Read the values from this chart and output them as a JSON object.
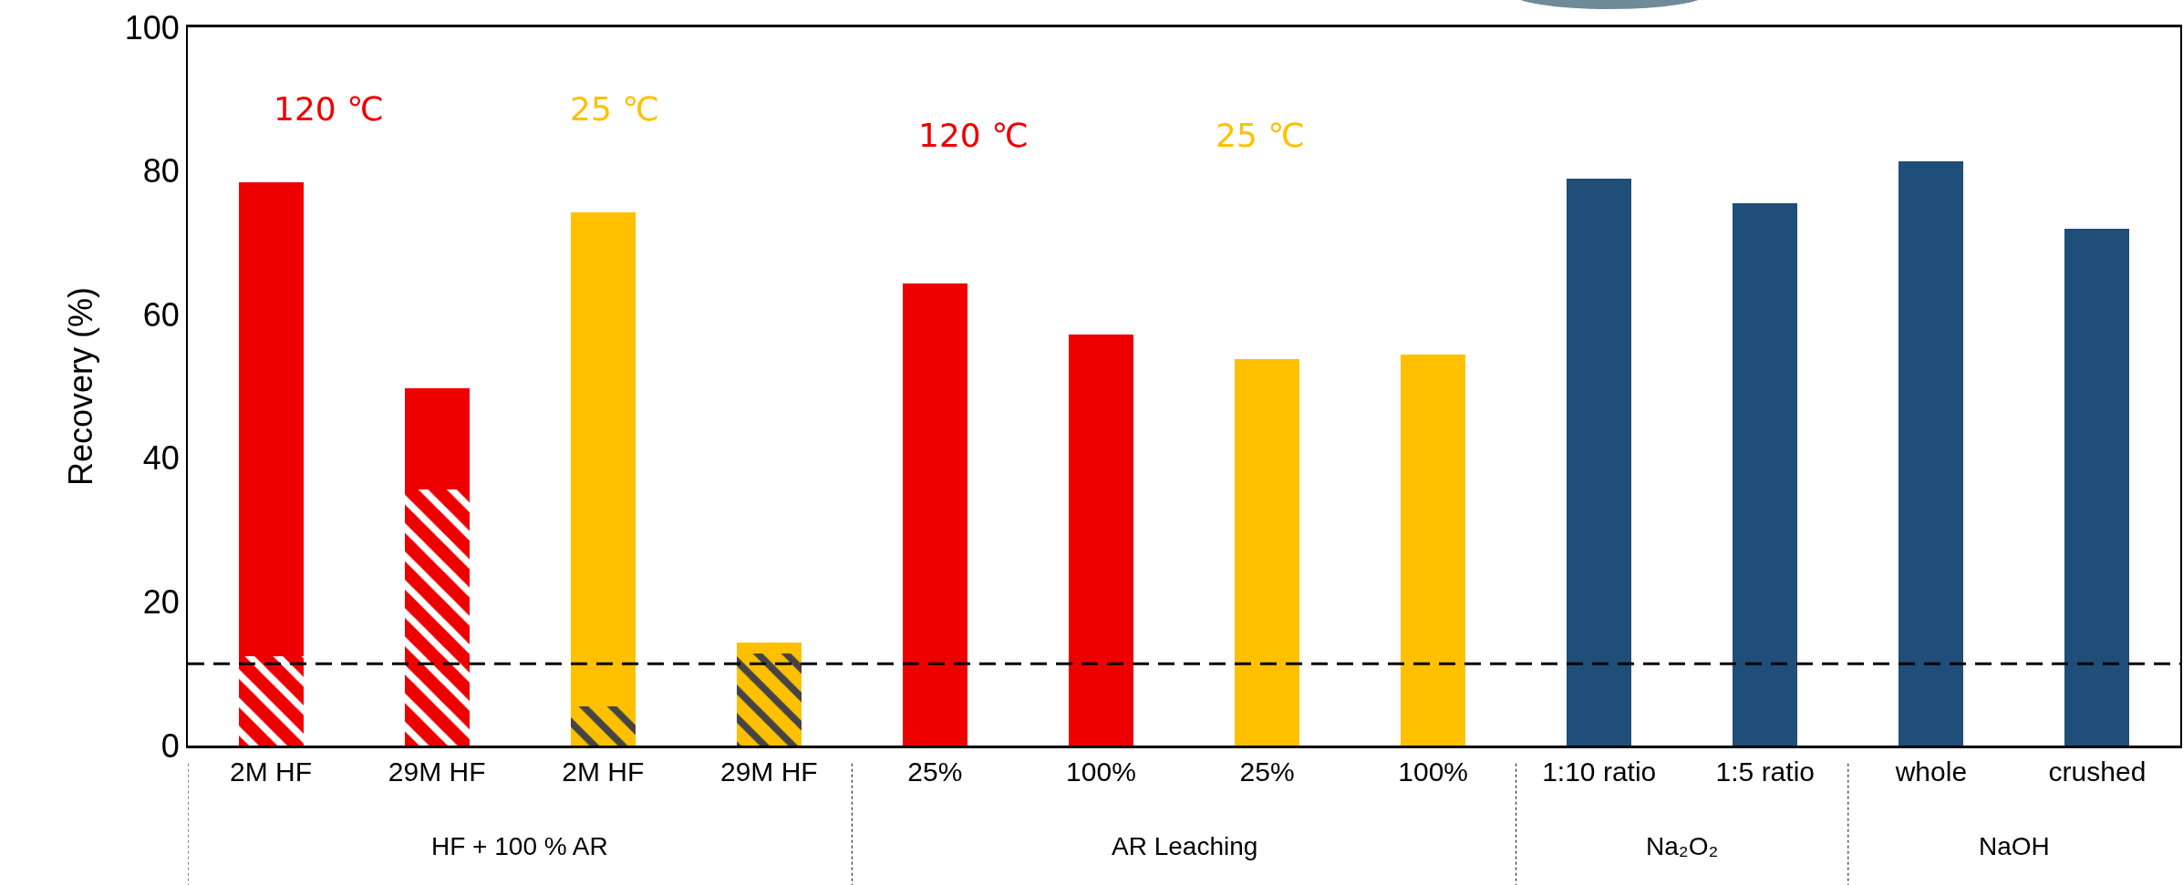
{
  "chart_data": {
    "type": "bar",
    "ylabel": "Recovery (%)",
    "categories": [
      "2M HF",
      "29M HF",
      "2M HF",
      "29M HF",
      "25%",
      "100%",
      "25%",
      "100%",
      "1:10 ratio",
      "1:5 ratio",
      "whole",
      "crushed"
    ],
    "stacked": true,
    "series": [
      {
        "colors": [
          "#ee0000",
          "#ee0000",
          "#ffc000",
          "#ffc000",
          null,
          null,
          null,
          null,
          null,
          null,
          null,
          null
        ],
        "values": [
          12.5,
          35.7,
          5.4,
          12.8,
          null,
          null,
          null,
          null,
          null,
          null,
          null,
          null
        ]
      },
      {
        "colors": [
          "#ee0000",
          "#ee0000",
          "#ffc000",
          "#ffc000",
          "#ee0000",
          "#ee0000",
          "#ffc000",
          "#ffc000",
          "#1f4e79",
          "#1f4e79",
          "#1f4e79",
          "#1f4e79"
        ],
        "values": [
          65.9,
          14.1,
          68.9,
          1.6,
          64.3,
          57.2,
          53.8,
          54.4,
          78.9,
          75.5,
          81.3,
          71.9
        ]
      }
    ],
    "ylim": [
      0,
      100
    ],
    "yticks": [
      0,
      20,
      40,
      60,
      80,
      100
    ],
    "grid": false,
    "ref_lines": [
      {
        "axis": "y",
        "value": 11.4,
        "color": "#000000",
        "line_style": "dashed"
      }
    ],
    "annotations": [
      "120 ℃",
      "25 ℃",
      "120 ℃",
      "25 ℃",
      "HF + 100 % AR",
      "AR Leaching",
      "Na₂O₂",
      "NaOH"
    ]
  }
}
